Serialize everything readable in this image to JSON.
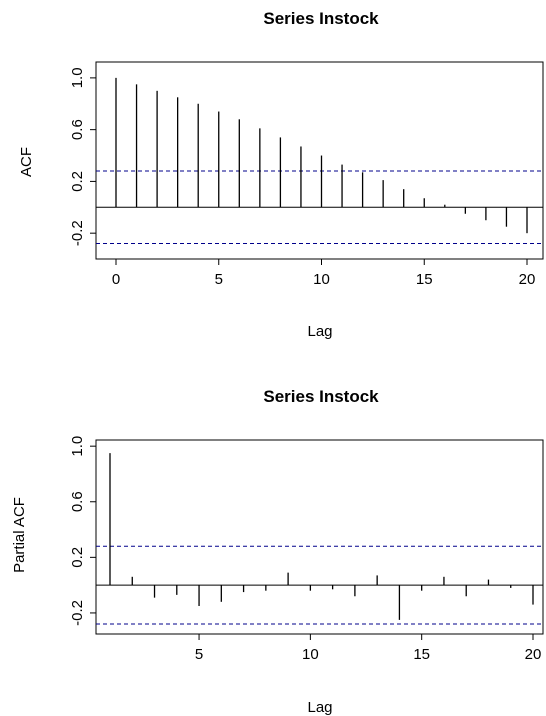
{
  "chart_data": [
    {
      "type": "bar",
      "title": "Series Instock",
      "xlabel": "Lag",
      "ylabel": "ACF",
      "xlim": [
        0,
        20
      ],
      "ylim": [
        -0.33,
        1.03
      ],
      "x_ticks": [
        "0",
        "5",
        "10",
        "15",
        "20"
      ],
      "y_ticks": [
        "-0.2",
        "0.2",
        "0.6",
        "1.0"
      ],
      "confidence_bound": 0.28,
      "colors": {
        "series": "#000000",
        "confidence": "#00008b",
        "zero": "#000000"
      },
      "x": [
        0,
        1,
        2,
        3,
        4,
        5,
        6,
        7,
        8,
        9,
        10,
        11,
        12,
        13,
        14,
        15,
        16,
        17,
        18,
        19,
        20
      ],
      "values": [
        1.0,
        0.95,
        0.9,
        0.85,
        0.8,
        0.74,
        0.68,
        0.61,
        0.54,
        0.47,
        0.4,
        0.33,
        0.27,
        0.21,
        0.14,
        0.07,
        0.02,
        -0.05,
        -0.1,
        -0.15,
        -0.2
      ]
    },
    {
      "type": "bar",
      "title": "Series Instock",
      "xlabel": "Lag",
      "ylabel": "Partial ACF",
      "xlim": [
        1,
        20
      ],
      "ylim": [
        -0.33,
        1.03
      ],
      "x_ticks": [
        "5",
        "10",
        "15",
        "20"
      ],
      "y_ticks": [
        "-0.2",
        "0.2",
        "0.6",
        "1.0"
      ],
      "confidence_bound": 0.28,
      "colors": {
        "series": "#000000",
        "confidence": "#00008b",
        "zero": "#000000"
      },
      "x": [
        1,
        2,
        3,
        4,
        5,
        6,
        7,
        8,
        9,
        10,
        11,
        12,
        13,
        14,
        15,
        16,
        17,
        18,
        19,
        20
      ],
      "values": [
        0.95,
        0.06,
        -0.09,
        -0.07,
        -0.15,
        -0.12,
        -0.05,
        -0.04,
        0.09,
        -0.04,
        -0.03,
        -0.08,
        0.07,
        -0.25,
        -0.04,
        0.06,
        -0.08,
        0.04,
        -0.02,
        -0.14
      ]
    }
  ]
}
